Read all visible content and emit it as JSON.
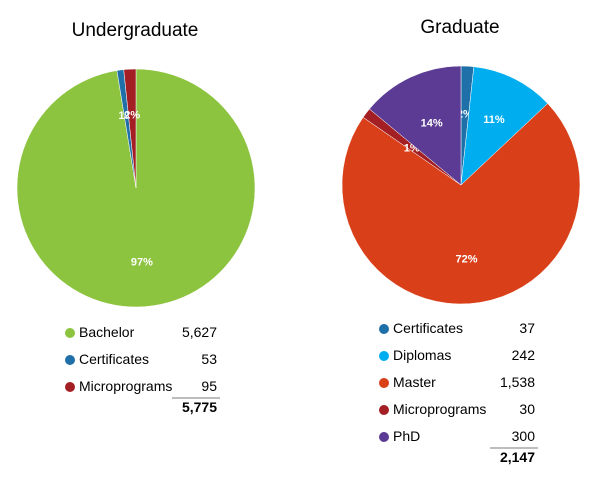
{
  "chart_data": [
    {
      "type": "pie",
      "title": "Undergraduate",
      "slices": [
        {
          "label": "Bachelor",
          "value": 5627,
          "value_label": "5,627",
          "percent_label": "97%",
          "color": "#8dc43f"
        },
        {
          "label": "Certificates",
          "value": 53,
          "value_label": "53",
          "percent_label": "1%",
          "color": "#1f6fa8"
        },
        {
          "label": "Microprograms",
          "value": 95,
          "value_label": "95",
          "percent_label": "2%",
          "color": "#a31f24"
        }
      ],
      "total_label": "5,775"
    },
    {
      "type": "pie",
      "title": "Graduate",
      "slices": [
        {
          "label": "Certificates",
          "value": 37,
          "value_label": "37",
          "percent_label": "2%",
          "color": "#1f6fa8"
        },
        {
          "label": "Diplomas",
          "value": 242,
          "value_label": "242",
          "percent_label": "11%",
          "color": "#00aeef"
        },
        {
          "label": "Master",
          "value": 1538,
          "value_label": "1,538",
          "percent_label": "72%",
          "color": "#d9401a"
        },
        {
          "label": "Microprograms",
          "value": 30,
          "value_label": "30",
          "percent_label": "1%",
          "color": "#a31f24"
        },
        {
          "label": "PhD",
          "value": 300,
          "value_label": "300",
          "percent_label": "14%",
          "color": "#5b3b94"
        }
      ],
      "total_label": "2,147"
    }
  ]
}
